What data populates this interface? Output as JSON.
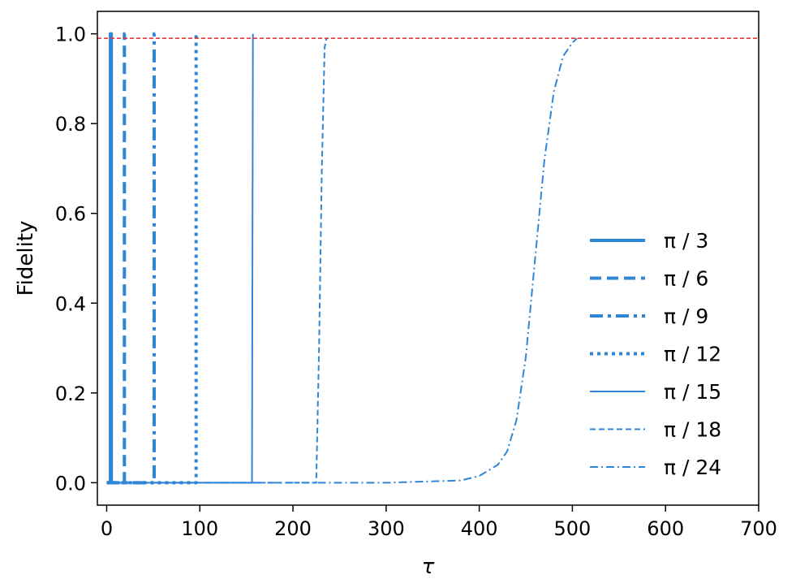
{
  "chart_data": {
    "type": "line",
    "title": "",
    "xlabel": "τ",
    "ylabel": "Fidelity",
    "xlim": [
      -10,
      700
    ],
    "ylim": [
      -0.05,
      1.05
    ],
    "xticks": [
      0,
      100,
      200,
      300,
      400,
      500,
      600,
      700
    ],
    "yticks": [
      0.0,
      0.2,
      0.4,
      0.6,
      0.8,
      1.0
    ],
    "ytick_labels": [
      "0.0",
      "0.2",
      "0.4",
      "0.6",
      "0.8",
      "1.0"
    ],
    "grid": false,
    "legend_position": "center-right",
    "reference_line": {
      "y": 0.99,
      "color": "#e8262a",
      "style": "dashed"
    },
    "series_color": "#2f86d6",
    "series": [
      {
        "name": "π / 3",
        "style": "solid",
        "width": 4.0,
        "x": [
          0,
          4,
          4,
          5,
          5
        ],
        "y": [
          0,
          0,
          1.0,
          1.0,
          0
        ]
      },
      {
        "name": "π / 6",
        "style": "dashed",
        "width": 4.0,
        "x": [
          0,
          19,
          19,
          20
        ],
        "y": [
          0,
          0,
          1.0,
          1.0
        ]
      },
      {
        "name": "π / 9",
        "style": "dashdot",
        "width": 4.0,
        "x": [
          0,
          51,
          51,
          52
        ],
        "y": [
          0,
          0,
          1.0,
          1.0
        ]
      },
      {
        "name": "π / 12",
        "style": "dotted",
        "width": 4.0,
        "x": [
          0,
          96,
          96,
          97
        ],
        "y": [
          0,
          0,
          1.0,
          1.0
        ]
      },
      {
        "name": "π / 15",
        "style": "solid",
        "width": 2.0,
        "x": [
          0,
          156,
          157
        ],
        "y": [
          0,
          0,
          1.0
        ]
      },
      {
        "name": "π / 18",
        "style": "dashed",
        "width": 2.0,
        "x": [
          0,
          225,
          228,
          231,
          234,
          236
        ],
        "y": [
          0,
          0,
          0.3,
          0.7,
          0.97,
          0.99
        ]
      },
      {
        "name": "π / 24",
        "style": "dashdot",
        "width": 2.0,
        "x": [
          0,
          300,
          380,
          400,
          420,
          430,
          440,
          450,
          460,
          470,
          480,
          490,
          500,
          505
        ],
        "y": [
          0,
          0.0,
          0.005,
          0.015,
          0.04,
          0.07,
          0.14,
          0.28,
          0.5,
          0.72,
          0.87,
          0.95,
          0.98,
          0.99
        ]
      }
    ]
  }
}
